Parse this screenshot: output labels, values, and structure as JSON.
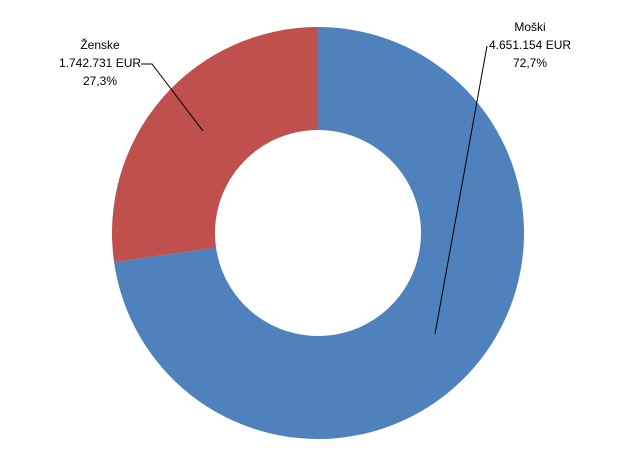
{
  "chart_data": {
    "type": "donut",
    "categories": [
      "Moški",
      "Ženske"
    ],
    "values": [
      4651154,
      1742731
    ],
    "value_labels": [
      "4.651.154 EUR",
      "1.742.731 EUR"
    ],
    "percents": [
      72.7,
      27.3
    ],
    "percent_labels": [
      "72,7%",
      "27,3%"
    ],
    "colors": [
      "#4f81bd",
      "#c0504d"
    ],
    "start_angle": 0,
    "direction": "clockwise"
  }
}
